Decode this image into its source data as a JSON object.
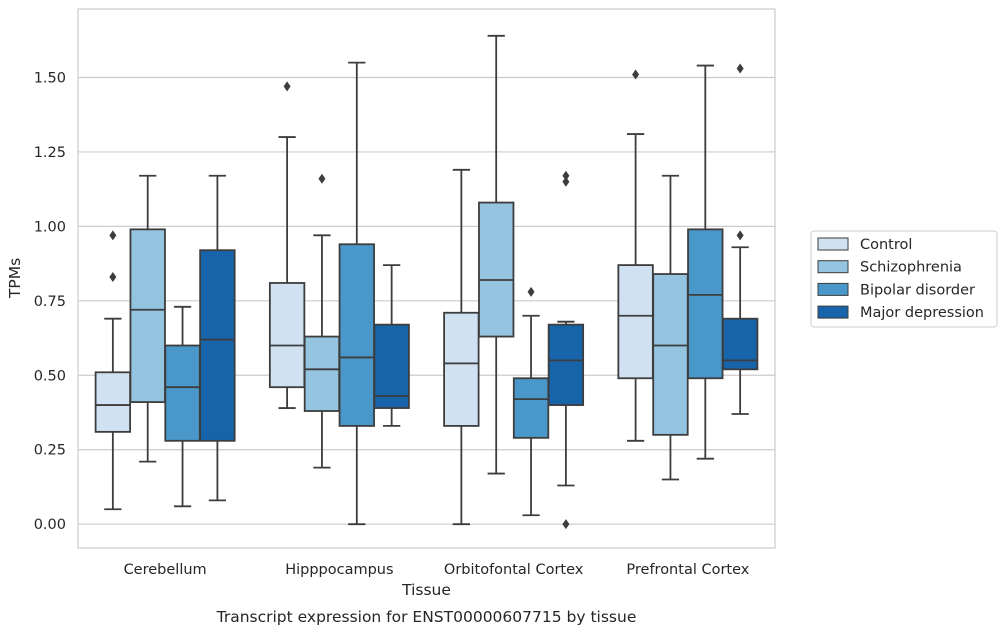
{
  "caption": "Transcript expression for ENST00000607715 by tissue",
  "chart_data": {
    "type": "boxplot",
    "xlabel": "Tissue",
    "ylabel": "TPMs",
    "ylim": [
      -0.08,
      1.73
    ],
    "yticks": [
      0.0,
      0.25,
      0.5,
      0.75,
      1.0,
      1.25,
      1.5
    ],
    "ytick_labels": [
      "0.00",
      "0.25",
      "0.50",
      "0.75",
      "1.00",
      "1.25",
      "1.50"
    ],
    "grid": true,
    "legend_position": "right",
    "categories": [
      "Cerebellum",
      "Hipppocampus",
      "Orbitofontal Cortex",
      "Prefrontal Cortex"
    ],
    "series": [
      {
        "name": "Control",
        "color": "#d0e1f2",
        "boxes": [
          {
            "whislo": 0.05,
            "q1": 0.31,
            "med": 0.4,
            "q3": 0.51,
            "whishi": 0.69,
            "fliers": [
              0.83,
              0.97
            ]
          },
          {
            "whislo": 0.39,
            "q1": 0.46,
            "med": 0.6,
            "q3": 0.81,
            "whishi": 1.3,
            "fliers": [
              1.47
            ]
          },
          {
            "whislo": 0.0,
            "q1": 0.33,
            "med": 0.54,
            "q3": 0.71,
            "whishi": 1.19,
            "fliers": []
          },
          {
            "whislo": 0.28,
            "q1": 0.49,
            "med": 0.7,
            "q3": 0.87,
            "whishi": 1.31,
            "fliers": [
              1.51
            ]
          }
        ]
      },
      {
        "name": "Schizophrenia",
        "color": "#94c4df",
        "boxes": [
          {
            "whislo": 0.21,
            "q1": 0.41,
            "med": 0.72,
            "q3": 0.99,
            "whishi": 1.17,
            "fliers": []
          },
          {
            "whislo": 0.19,
            "q1": 0.38,
            "med": 0.52,
            "q3": 0.63,
            "whishi": 0.97,
            "fliers": [
              1.16
            ]
          },
          {
            "whislo": 0.17,
            "q1": 0.63,
            "med": 0.82,
            "q3": 1.08,
            "whishi": 1.64,
            "fliers": []
          },
          {
            "whislo": 0.15,
            "q1": 0.3,
            "med": 0.6,
            "q3": 0.84,
            "whishi": 1.17,
            "fliers": []
          }
        ]
      },
      {
        "name": "Bipolar disorder",
        "color": "#4a98c9",
        "boxes": [
          {
            "whislo": 0.06,
            "q1": 0.28,
            "med": 0.46,
            "q3": 0.6,
            "whishi": 0.73,
            "fliers": []
          },
          {
            "whislo": 0.0,
            "q1": 0.33,
            "med": 0.56,
            "q3": 0.94,
            "whishi": 1.55,
            "fliers": []
          },
          {
            "whislo": 0.03,
            "q1": 0.29,
            "med": 0.42,
            "q3": 0.49,
            "whishi": 0.7,
            "fliers": [
              0.78
            ]
          },
          {
            "whislo": 0.22,
            "q1": 0.49,
            "med": 0.77,
            "q3": 0.99,
            "whishi": 1.54,
            "fliers": []
          }
        ]
      },
      {
        "name": "Major depression",
        "color": "#1764ab",
        "boxes": [
          {
            "whislo": 0.08,
            "q1": 0.28,
            "med": 0.62,
            "q3": 0.92,
            "whishi": 1.17,
            "fliers": []
          },
          {
            "whislo": 0.33,
            "q1": 0.39,
            "med": 0.43,
            "q3": 0.67,
            "whishi": 0.87,
            "fliers": []
          },
          {
            "whislo": 0.13,
            "q1": 0.4,
            "med": 0.55,
            "q3": 0.67,
            "whishi": 0.68,
            "fliers": [
              0.0,
              1.15,
              1.17
            ]
          },
          {
            "whislo": 0.37,
            "q1": 0.52,
            "med": 0.55,
            "q3": 0.69,
            "whishi": 0.93,
            "fliers": [
              0.97,
              1.53
            ]
          }
        ]
      }
    ]
  }
}
